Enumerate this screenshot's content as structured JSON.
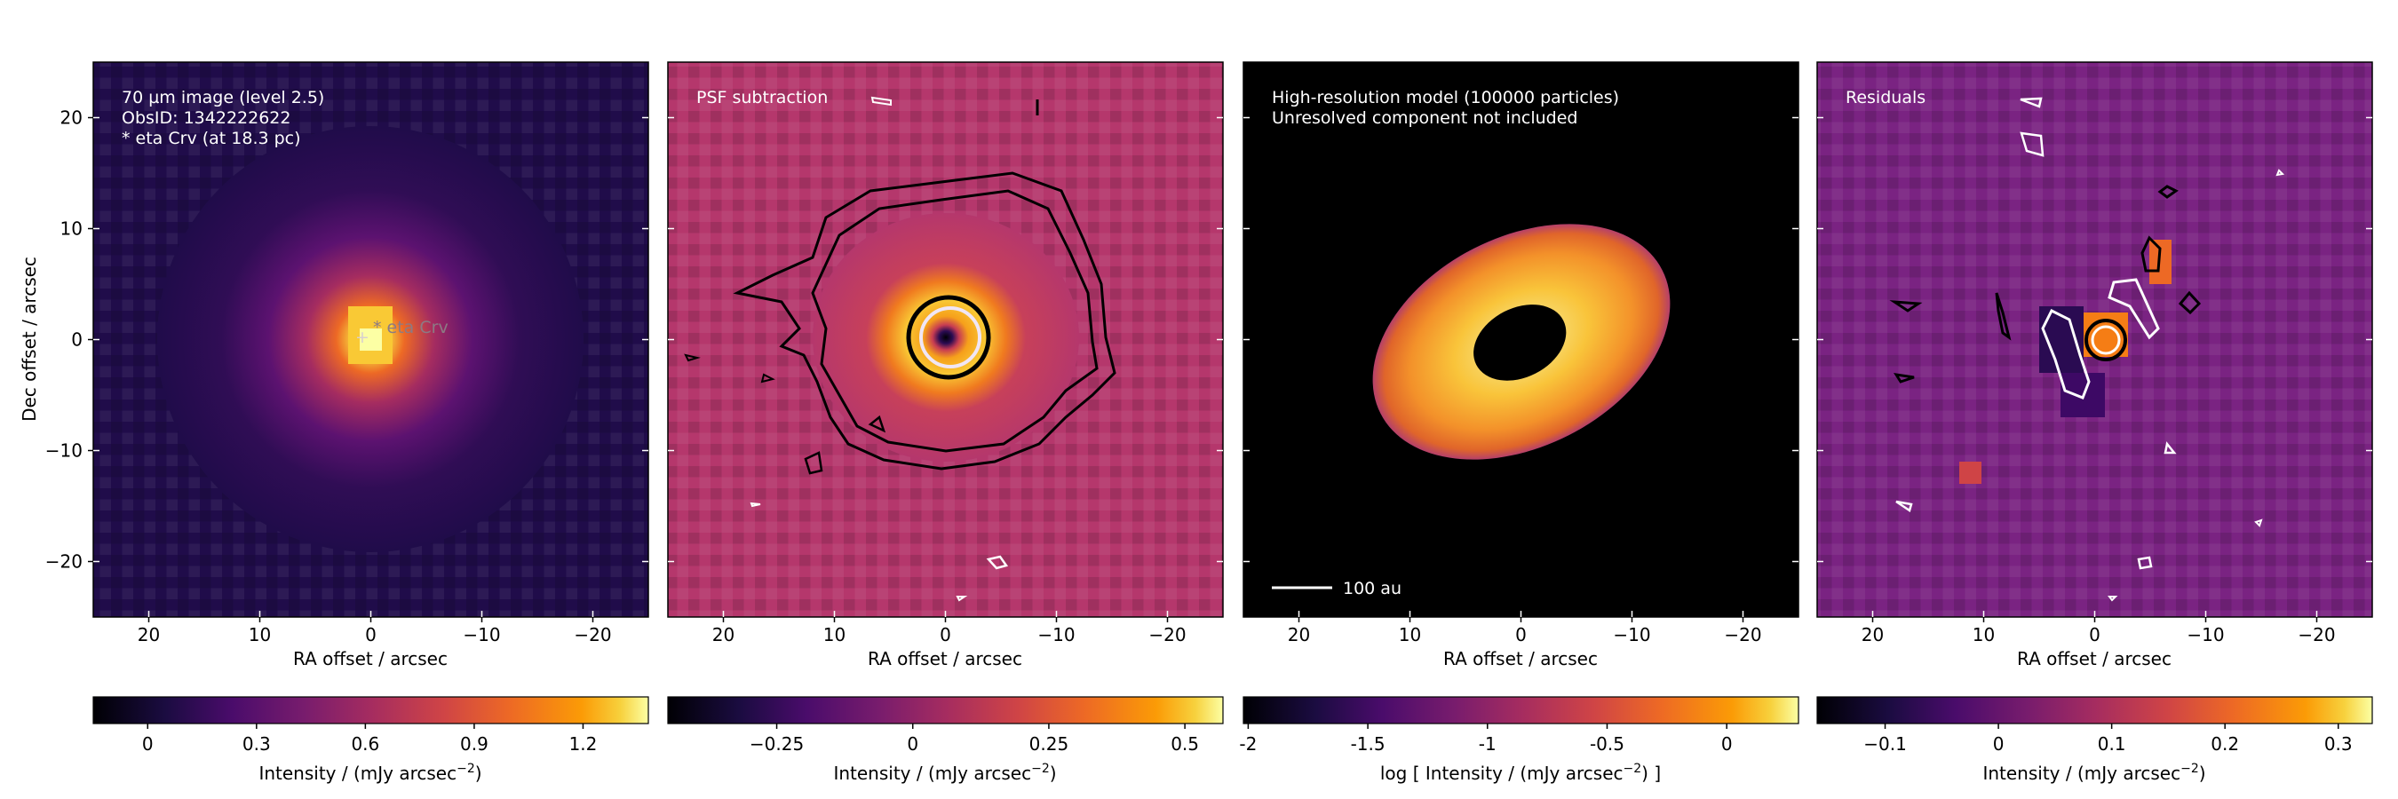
{
  "figure": {
    "xlabel": "RA offset / arcsec",
    "ylabel": "Dec offset / arcsec",
    "x_ticks": [
      20,
      10,
      0,
      -10,
      -20
    ],
    "y_ticks": [
      20,
      10,
      0,
      -10,
      -20
    ],
    "x_tick_labels": [
      "20",
      "10",
      "0",
      "−10",
      "−20"
    ],
    "y_tick_labels": [
      "20",
      "10",
      "0",
      "−10",
      "−20"
    ],
    "xlim": [
      25,
      -25
    ],
    "ylim": [
      -25,
      25
    ]
  },
  "chart_data": [
    {
      "type": "heatmap",
      "title": "70 µm image (level 2.5)",
      "annotation_lines": [
        "70 µm image (level 2.5)",
        "ObsID: 1342222622",
        "* eta Crv (at 18.3 pc)"
      ],
      "star_label": "* eta Crv",
      "star_position": [
        -1.5,
        1.2
      ],
      "marker_position": [
        0,
        0
      ],
      "colorbar": {
        "label": "Intensity / (mJy arcsec⁻²)",
        "label_main": "Intensity / (mJy arcsec",
        "label_exp": "−2",
        "label_close": ")",
        "range": [
          -0.15,
          1.38
        ],
        "ticks": [
          0,
          0.3,
          0.6,
          0.9,
          1.2
        ],
        "tick_labels": [
          "0",
          "0.3",
          "0.6",
          "0.9",
          "1.2"
        ]
      },
      "colors": {
        "background": "#200c4a",
        "peak": "#fcffa4"
      }
    },
    {
      "type": "heatmap",
      "title": "PSF subtraction",
      "annotation_lines": [
        "PSF subtraction"
      ],
      "contour_levels_black": 3,
      "contour_levels_white": 1,
      "colorbar": {
        "label": "Intensity / (mJy arcsec⁻²)",
        "label_main": "Intensity / (mJy arcsec",
        "label_exp": "−2",
        "label_close": ")",
        "range": [
          -0.45,
          0.57
        ],
        "ticks": [
          -0.25,
          0,
          0.25,
          0.5
        ],
        "tick_labels": [
          "−0.25",
          "0",
          "0.25",
          "0.5"
        ]
      },
      "colors": {
        "background": "#b5376c",
        "peak": "#f8e06a"
      }
    },
    {
      "type": "heatmap",
      "title": "High-resolution model (100000 particles)",
      "annotation_lines": [
        "High-resolution model (100000 particles)",
        "Unresolved component not included"
      ],
      "scale_bar_label": "100 au",
      "colorbar": {
        "label": "log [ Intensity / (mJy arcsec⁻²) ]",
        "label_main": "log [ Intensity / (mJy arcsec",
        "label_exp": "−2",
        "label_close": ") ]",
        "range": [
          -2.02,
          0.3
        ],
        "ticks": [
          -2,
          -1.5,
          -1,
          -0.5,
          0
        ],
        "tick_labels": [
          "-2",
          "-1.5",
          "-1",
          "-0.5",
          "0"
        ]
      },
      "colors": {
        "background": "#000000",
        "ring": "#f3912a"
      }
    },
    {
      "type": "heatmap",
      "title": "Residuals",
      "annotation_lines": [
        "Residuals"
      ],
      "colorbar": {
        "label": "Intensity / (mJy arcsec⁻²)",
        "label_main": "Intensity / (mJy arcsec",
        "label_exp": "−2",
        "label_close": ")",
        "range": [
          -0.16,
          0.33
        ],
        "ticks": [
          -0.1,
          0,
          0.1,
          0.2,
          0.3
        ],
        "tick_labels": [
          "−0.1",
          "0",
          "0.1",
          "0.2",
          "0.3"
        ]
      },
      "colors": {
        "background": "#7a2382",
        "peak": "#f57d15"
      }
    }
  ]
}
